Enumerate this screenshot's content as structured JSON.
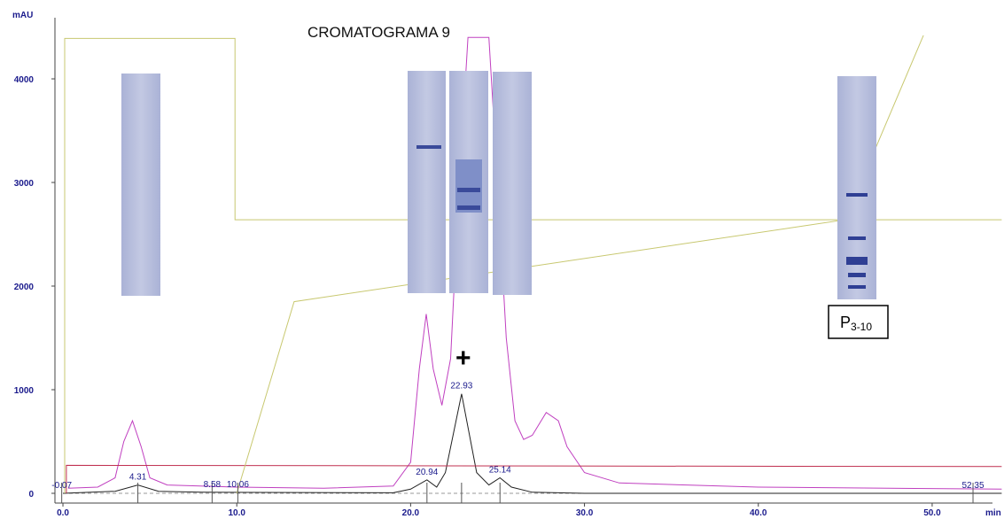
{
  "chart_data": {
    "type": "line",
    "title": "CROMATOGRAMA 9",
    "y_label": "mAU",
    "x_label": "min",
    "xlim": [
      -0.46,
      53.47
    ],
    "ylim": [
      -94,
      4590
    ],
    "xticks": [
      {
        "value": 0,
        "label": "0.0"
      },
      {
        "value": 10,
        "label": "10.0"
      },
      {
        "value": 20,
        "label": "20.0"
      },
      {
        "value": 30,
        "label": "30.0"
      },
      {
        "value": 40,
        "label": "40.0"
      },
      {
        "value": 50,
        "label": "50.0"
      }
    ],
    "yticks": [
      0,
      1000,
      2000,
      3000,
      4000
    ],
    "series": [
      {
        "color": "#c040c0",
        "x": [
          0.3,
          2,
          3,
          3.5,
          4,
          4.5,
          5,
          6,
          10,
          15,
          19,
          20,
          20.5,
          20.9,
          21.3,
          21.8,
          22.3,
          22.8,
          23.3,
          24.5,
          25,
          25.5,
          26,
          26.5,
          27,
          27.8,
          28.5,
          29,
          30,
          32,
          40,
          54
        ],
        "values": [
          50,
          60,
          150,
          500,
          700,
          450,
          150,
          80,
          60,
          50,
          70,
          300,
          1200,
          1730,
          1200,
          850,
          1300,
          3000,
          4400,
          4400,
          3000,
          1500,
          700,
          520,
          560,
          780,
          700,
          450,
          200,
          100,
          60,
          40
        ]
      },
      {
        "color": "#202020",
        "x": [
          0,
          3,
          4.31,
          5.5,
          8,
          19,
          20,
          20.94,
          21.5,
          22,
          22.93,
          23.8,
          24.5,
          25.14,
          25.8,
          27,
          30,
          54
        ],
        "values": [
          0,
          20,
          80,
          20,
          10,
          5,
          40,
          130,
          60,
          200,
          960,
          200,
          80,
          150,
          60,
          10,
          0,
          0
        ]
      },
      {
        "color": "#c03050",
        "x": [
          0.2,
          0.2,
          54
        ],
        "values": [
          0,
          270,
          258
        ]
      },
      {
        "color": "#c8c870",
        "x": [
          0.1,
          0.1,
          9.9,
          9.9,
          54
        ],
        "values": [
          0,
          4390,
          4390,
          2640,
          2640
        ]
      },
      {
        "color": "#c8c870",
        "x": [
          10,
          13.3,
          45,
          49.5
        ],
        "values": [
          0,
          1850,
          2640,
          4420
        ]
      }
    ],
    "peak_labels": [
      -0.07,
      4.31,
      8.58,
      10.06,
      20.94,
      22.93,
      25.14,
      52.35
    ],
    "annotation": "+",
    "fraction_label": {
      "main": "P",
      "sub": "3-10"
    }
  }
}
